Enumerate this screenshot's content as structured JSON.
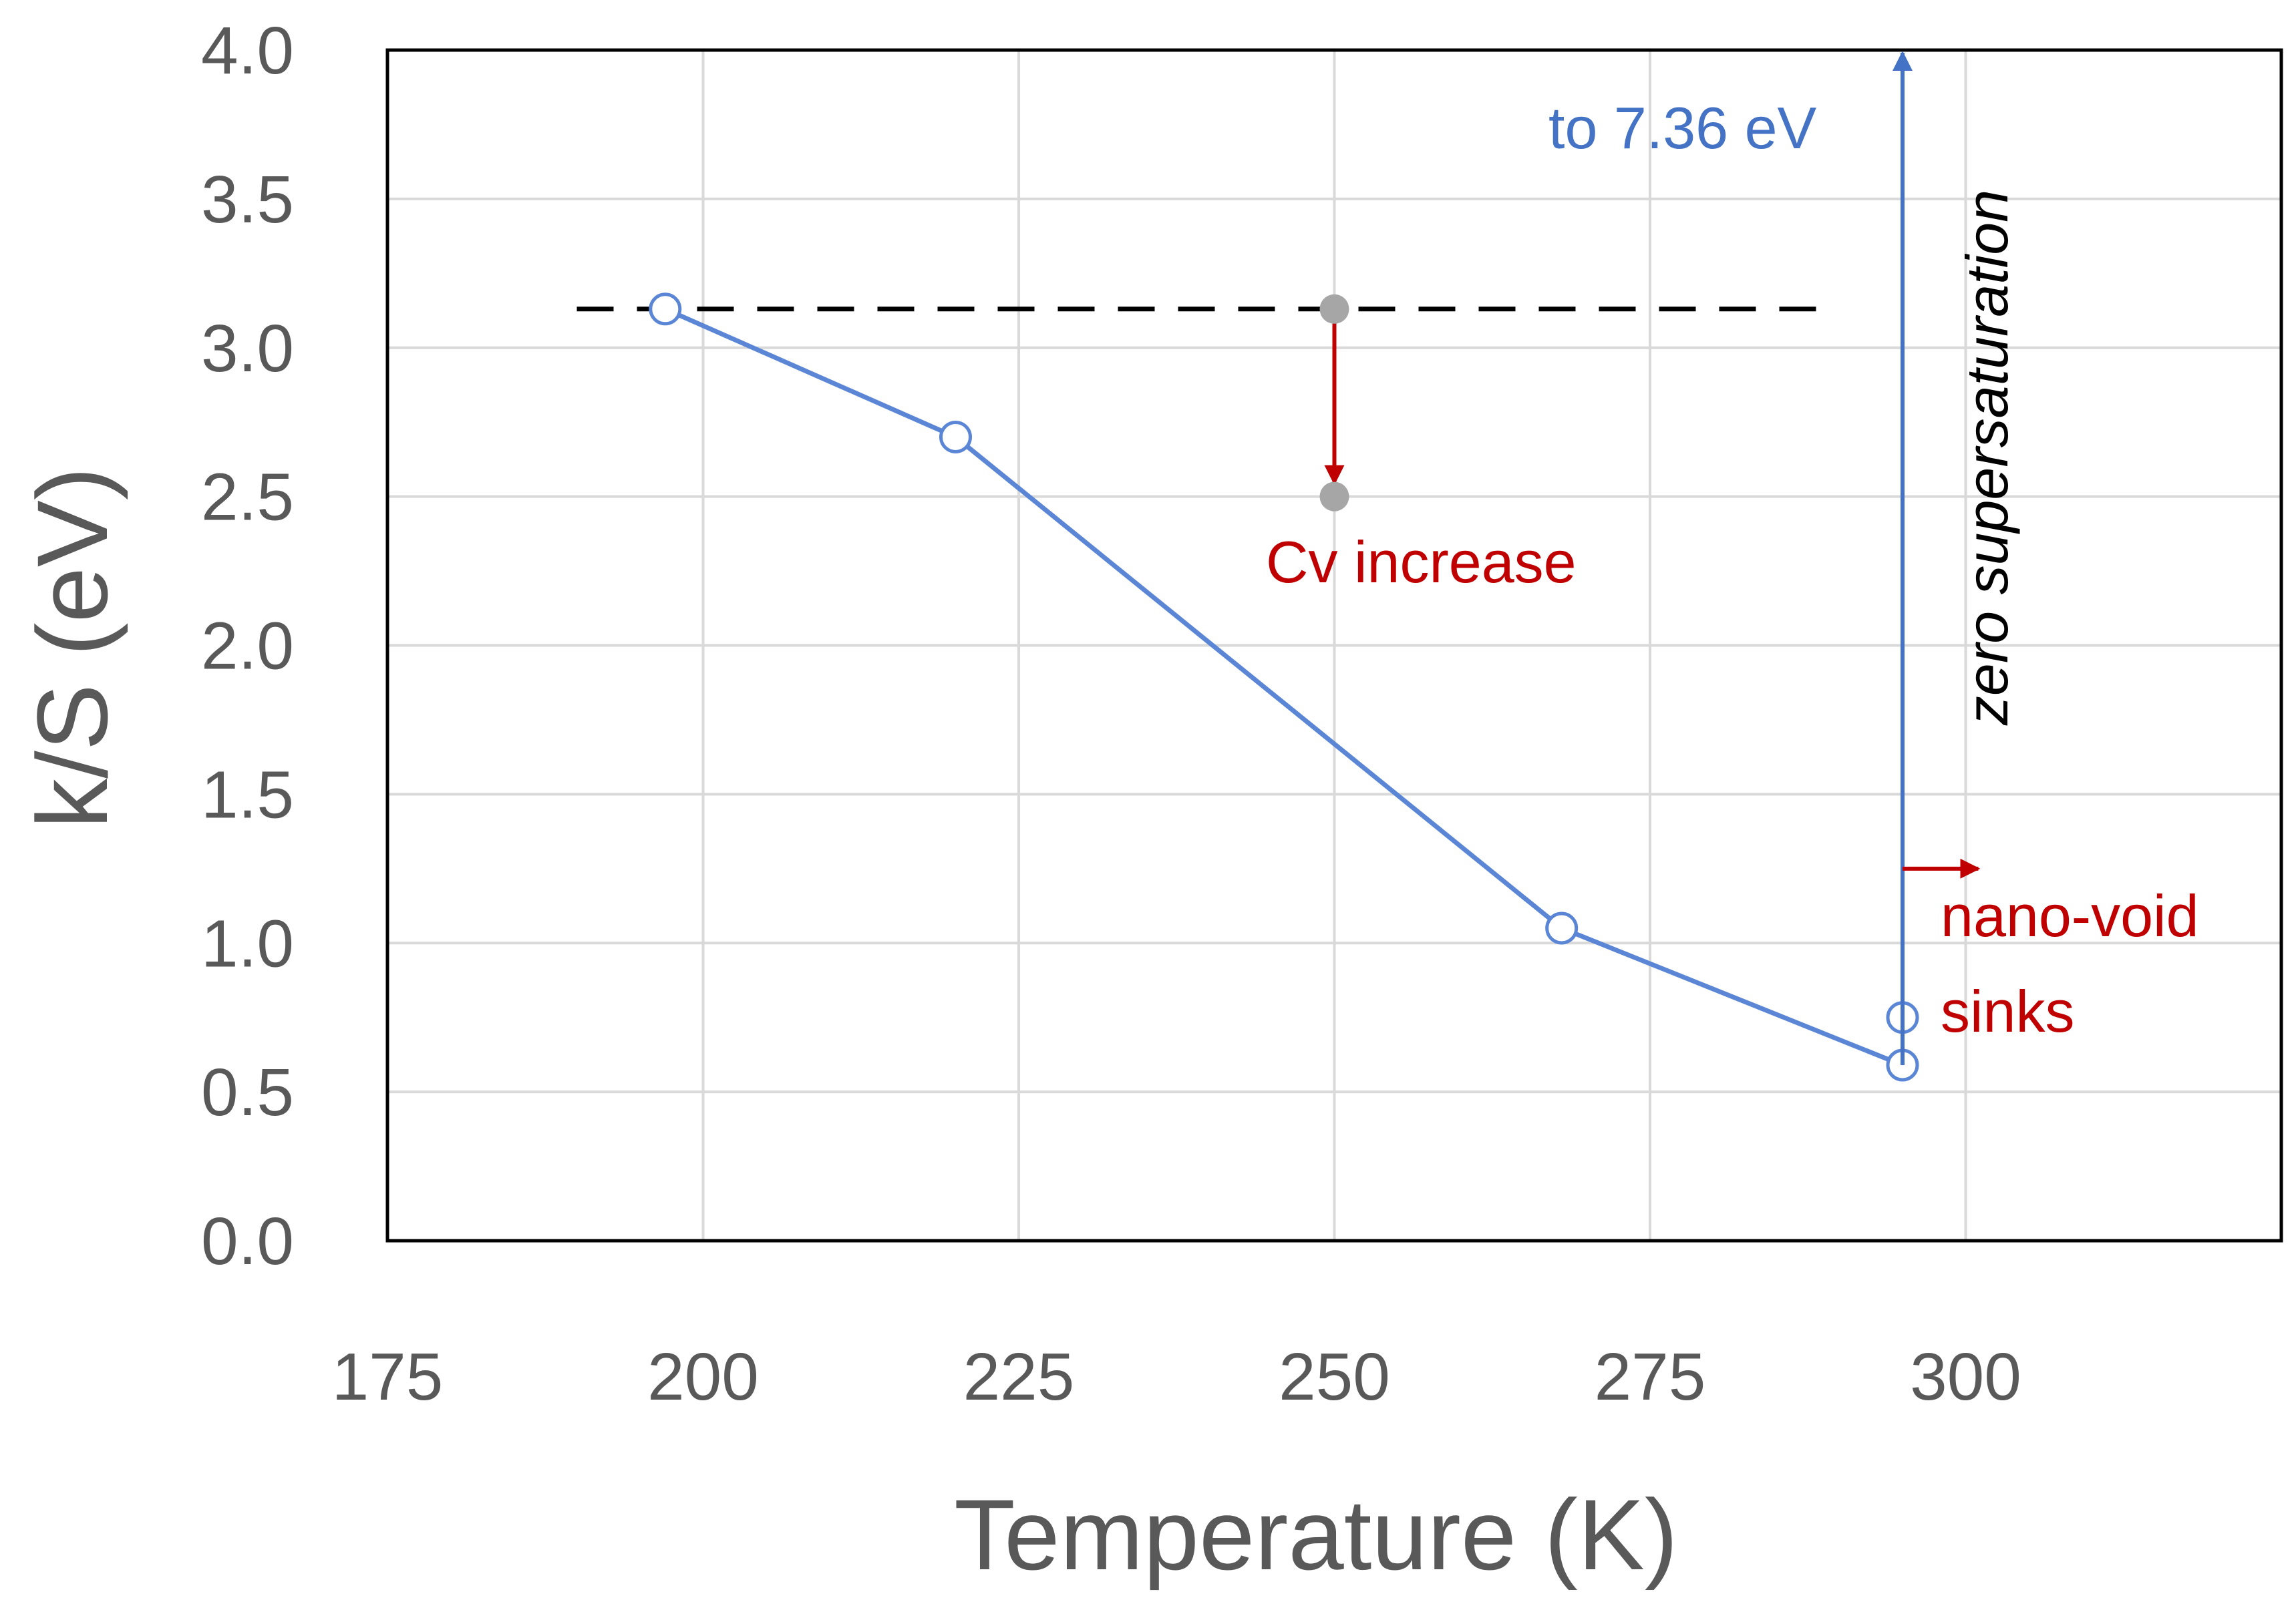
{
  "chart_data": {
    "type": "line",
    "xlabel": "Temperature (K)",
    "ylabel": "k/S  (eV)",
    "xlim": [
      175,
      325
    ],
    "ylim": [
      0,
      4
    ],
    "xticks": [
      175,
      200,
      225,
      250,
      275,
      300
    ],
    "yticks": [
      0.0,
      0.5,
      1.0,
      1.5,
      2.0,
      2.5,
      3.0,
      3.5,
      4.0
    ],
    "grid": true,
    "series": [
      {
        "name": "k/S",
        "color": "#5b86d6",
        "marker": "open-circle",
        "points": [
          [
            197,
            3.13
          ],
          [
            220,
            2.7
          ],
          [
            268,
            1.05
          ],
          [
            295,
            0.59
          ]
        ]
      },
      {
        "name": "nano-void sinks point",
        "color": "#5b86d6",
        "marker": "open-circle",
        "points": [
          [
            295,
            0.75
          ]
        ]
      }
    ],
    "reference_line": {
      "style": "dashed",
      "color": "#000000",
      "y": 3.13,
      "x_from": 190,
      "x_to": 290
    },
    "annotations": [
      {
        "text": "Cv increase",
        "color": "#c00000",
        "arrow_x": 250,
        "arrow_from_y": 3.13,
        "arrow_to_y": 2.5
      },
      {
        "text": "to 7.36 eV",
        "color": "#4472c4",
        "arrow_x": 295,
        "arrow_from_y": 0.59,
        "arrow_to_y": 4.0
      },
      {
        "text": "zero supersaturation",
        "color": "#000000",
        "style": "italic, rotated"
      },
      {
        "text": "nano-void",
        "color": "#c00000"
      },
      {
        "text": "sinks",
        "color": "#c00000"
      }
    ]
  }
}
